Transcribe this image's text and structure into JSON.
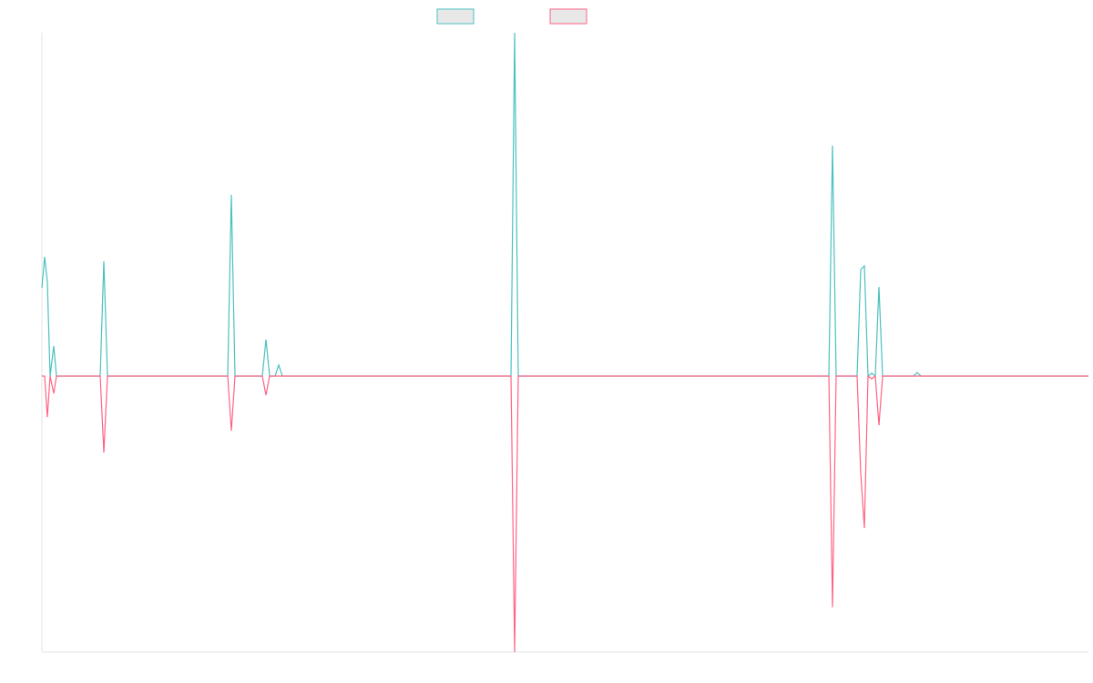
{
  "chart_data": {
    "type": "line",
    "x": [
      0,
      3,
      6,
      9,
      13,
      16,
      64,
      68,
      72,
      204,
      208,
      212,
      242,
      246,
      250,
      256,
      260,
      264,
      515,
      519,
      523,
      864,
      868,
      872,
      895,
      899,
      903,
      907,
      911,
      915,
      919,
      923,
      957,
      961,
      965,
      1149
    ],
    "xlim": [
      0,
      1149
    ],
    "ylim": [
      -100,
      124.4
    ],
    "series": [
      {
        "color": "#4bc0c0",
        "values": [
          32,
          43.2,
          34,
          0,
          10.9,
          0,
          0,
          41.6,
          0,
          0,
          65.7,
          0,
          0,
          13.2,
          0,
          0,
          4,
          0,
          0,
          124.4,
          0,
          0,
          83.5,
          0,
          0,
          38.6,
          39.9,
          0,
          1,
          0,
          32.3,
          0,
          0,
          1.3,
          0,
          0
        ]
      },
      {
        "color": "#ff6384",
        "values": [
          0,
          0,
          -14.9,
          0,
          -6.3,
          0,
          0,
          -27.7,
          0,
          0,
          -19.8,
          0,
          0,
          -6.9,
          0,
          0,
          0,
          0,
          0,
          -100,
          0,
          0,
          -83.8,
          0,
          0,
          -35.3,
          -55.1,
          0,
          -1,
          0,
          -17.8,
          0,
          0,
          0,
          0,
          0
        ]
      }
    ]
  }
}
